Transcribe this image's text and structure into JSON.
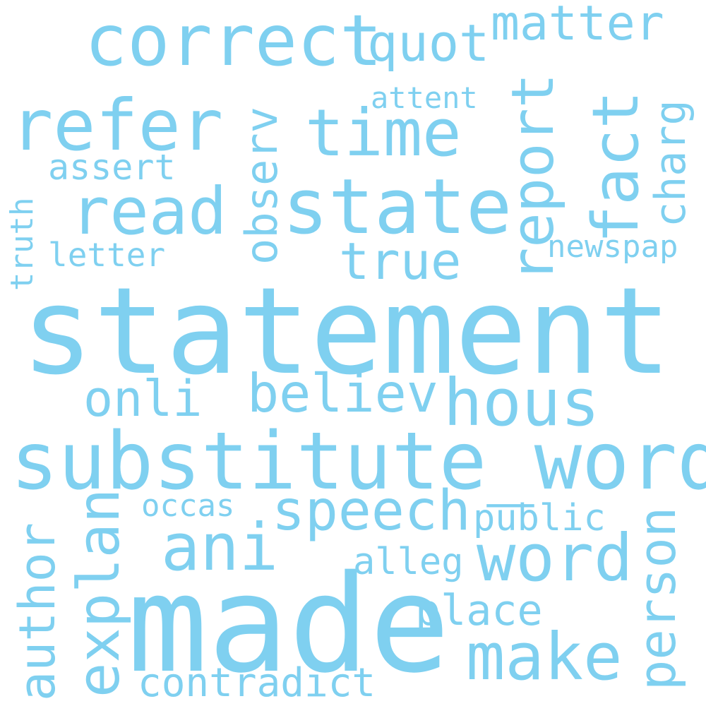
{
  "words": {
    "statement": "statement",
    "made": "made",
    "substitute_word": "substitute_word",
    "correct": "correct",
    "state": "state",
    "refer": "refer",
    "read": "read",
    "time": "time",
    "report": "report",
    "hous": "hous",
    "word": "word",
    "make": "make",
    "ani": "ani",
    "fact": "fact",
    "speech": "speech",
    "believ": "believ",
    "onli": "onli",
    "quot": "quot",
    "matter": "matter",
    "observ": "observ",
    "true": "true",
    "person": "person",
    "explan": "explan",
    "author": "author",
    "charg": "charg",
    "place": "place",
    "contradict": "contradict",
    "public": "public",
    "assert": "assert",
    "alleg": "alleg",
    "letter": "letter",
    "occas": "occas",
    "newspap": "newspap",
    "attent": "attent",
    "truth": "truth"
  },
  "colors": {
    "word": "#7fd0f0",
    "background": "#ffffff"
  }
}
